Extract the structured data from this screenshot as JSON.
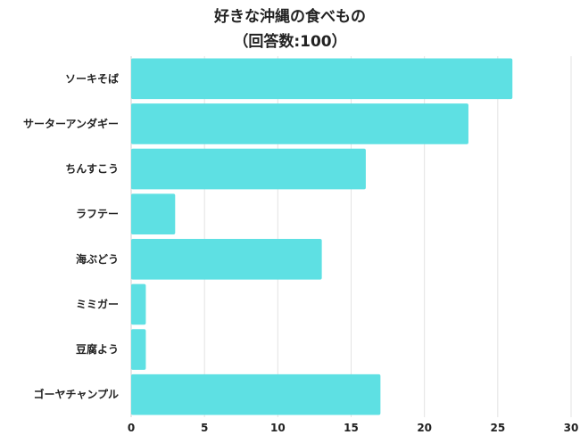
{
  "chart_data": {
    "type": "bar",
    "orientation": "horizontal",
    "title": "好きな沖縄の食べもの",
    "subtitle": "（回答数:100）",
    "categories": [
      "ソーキそば",
      "サーターアンダギー",
      "ちんすこう",
      "ラフテー",
      "海ぶどう",
      "ミミガー",
      "豆腐よう",
      "ゴーヤチャンプル"
    ],
    "values": [
      26,
      23,
      16,
      3,
      13,
      1,
      1,
      17
    ],
    "xlim": [
      0,
      30
    ],
    "xticks": [
      0,
      5,
      10,
      15,
      20,
      25,
      30
    ],
    "xlabel": "",
    "ylabel": "",
    "grid": true,
    "bar_color": "#5ee0e3"
  }
}
